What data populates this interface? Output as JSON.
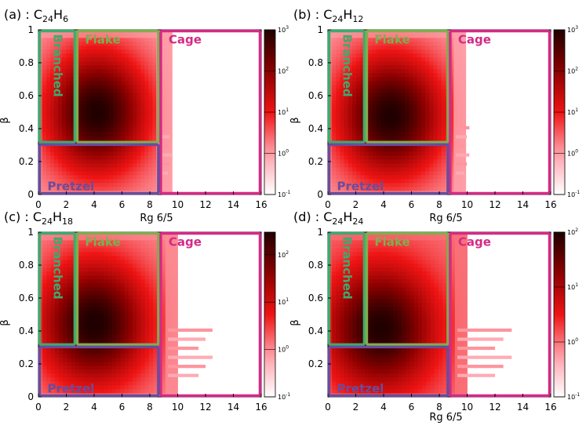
{
  "chart_data": [
    {
      "type": "heatmap",
      "title": "(a) : C24H6",
      "formula": {
        "prefix": "(a) : C",
        "n_c": "24",
        "h": "H",
        "n_h": "6"
      },
      "xlabel": "Rg 6/5",
      "ylabel": "β",
      "xlim": [
        0,
        16
      ],
      "ylim": [
        0,
        1
      ],
      "xticks": [
        "0",
        "2",
        "4",
        "6",
        "8",
        "10",
        "12",
        "14",
        "16"
      ],
      "yticks": [
        "0",
        "0.2",
        "0.4",
        "0.6",
        "0.8",
        "1"
      ],
      "colorbar": {
        "scale": "log",
        "min": 0.1,
        "max": 1000,
        "ticks": [
          {
            "base": "10",
            "exp": "-1"
          },
          {
            "base": "10",
            "exp": "0"
          },
          {
            "base": "10",
            "exp": "1"
          },
          {
            "base": "10",
            "exp": "2"
          },
          {
            "base": "10",
            "exp": "3"
          }
        ]
      },
      "density": {
        "peak_x": 4.2,
        "peak_y": 0.5,
        "x_extent": 8.6,
        "tail_x": 10.0,
        "max_log": 3
      },
      "regions": [
        {
          "label": "Branched",
          "x": [
            0,
            2.7
          ],
          "y": [
            0.31,
            1.0
          ],
          "color": "#3daa6e"
        },
        {
          "label": "Flake",
          "x": [
            2.7,
            8.7
          ],
          "y": [
            0.31,
            1.0
          ],
          "color": "#7fae4f"
        },
        {
          "label": "Cage",
          "x": [
            8.7,
            16
          ],
          "y": [
            0.0,
            1.0
          ],
          "color": "#d42a86"
        },
        {
          "label": "Pretzel",
          "x": [
            0,
            8.7
          ],
          "y": [
            0.0,
            0.31
          ],
          "color": "#6a4c9c"
        }
      ]
    },
    {
      "type": "heatmap",
      "title": "(b) : C24H12",
      "formula": {
        "prefix": "(b) : C",
        "n_c": "24",
        "h": "H",
        "n_h": "12"
      },
      "xlabel": "Rg 6/5",
      "ylabel": "β",
      "xlim": [
        0,
        16
      ],
      "ylim": [
        0,
        1
      ],
      "xticks": [
        "0",
        "2",
        "4",
        "6",
        "8",
        "10",
        "12",
        "14",
        "16"
      ],
      "yticks": [
        "0",
        "0.2",
        "0.4",
        "0.6",
        "0.8",
        "1"
      ],
      "colorbar": {
        "scale": "log",
        "min": 0.1,
        "max": 1000,
        "ticks": [
          {
            "base": "10",
            "exp": "-1"
          },
          {
            "base": "10",
            "exp": "0"
          },
          {
            "base": "10",
            "exp": "1"
          },
          {
            "base": "10",
            "exp": "2"
          },
          {
            "base": "10",
            "exp": "3"
          }
        ]
      },
      "density": {
        "peak_x": 4.5,
        "peak_y": 0.48,
        "x_extent": 8.9,
        "tail_x": 10.7,
        "max_log": 3
      },
      "regions": [
        {
          "label": "Branched",
          "x": [
            0,
            2.7
          ],
          "y": [
            0.31,
            1.0
          ],
          "color": "#3daa6e"
        },
        {
          "label": "Flake",
          "x": [
            2.7,
            8.7
          ],
          "y": [
            0.31,
            1.0
          ],
          "color": "#7fae4f"
        },
        {
          "label": "Cage",
          "x": [
            8.7,
            16
          ],
          "y": [
            0.0,
            1.0
          ],
          "color": "#d42a86"
        },
        {
          "label": "Pretzel",
          "x": [
            0,
            8.7
          ],
          "y": [
            0.0,
            0.31
          ],
          "color": "#6a4c9c"
        }
      ]
    },
    {
      "type": "heatmap",
      "title": "(c) : C24H18",
      "formula": {
        "prefix": "(c) : C",
        "n_c": "24",
        "h": "H",
        "n_h": "18"
      },
      "xlabel": "",
      "ylabel": "β",
      "xlim": [
        0,
        16
      ],
      "ylim": [
        0,
        1
      ],
      "xticks": [
        "0",
        "2",
        "4",
        "6",
        "8",
        "10",
        "12",
        "14",
        "16"
      ],
      "yticks": [
        "0",
        "0.2",
        "0.4",
        "0.6",
        "0.8",
        "1"
      ],
      "colorbar": {
        "scale": "log",
        "min": 0.1,
        "max": 300,
        "ticks": [
          {
            "base": "10",
            "exp": "-1"
          },
          {
            "base": "10",
            "exp": "0"
          },
          {
            "base": "10",
            "exp": "1"
          },
          {
            "base": "10",
            "exp": "2"
          }
        ]
      },
      "density": {
        "peak_x": 4.0,
        "peak_y": 0.45,
        "x_extent": 9.0,
        "tail_x": 14.0,
        "max_log": 2.5
      },
      "regions": [
        {
          "label": "Branched",
          "x": [
            0,
            2.7
          ],
          "y": [
            0.31,
            1.0
          ],
          "color": "#3daa6e"
        },
        {
          "label": "Flake",
          "x": [
            2.7,
            8.7
          ],
          "y": [
            0.31,
            1.0
          ],
          "color": "#7fae4f"
        },
        {
          "label": "Cage",
          "x": [
            8.7,
            16
          ],
          "y": [
            0.0,
            1.0
          ],
          "color": "#d42a86"
        },
        {
          "label": "Pretzel",
          "x": [
            0,
            8.7
          ],
          "y": [
            0.0,
            0.31
          ],
          "color": "#6a4c9c"
        }
      ]
    },
    {
      "type": "heatmap",
      "title": "(d) : C24H24",
      "formula": {
        "prefix": "(d) : C",
        "n_c": "24",
        "h": "H",
        "n_h": "24"
      },
      "xlabel": "Rg 6/5",
      "ylabel": "β",
      "xlim": [
        0,
        16
      ],
      "ylim": [
        0,
        1
      ],
      "xticks": [
        "0",
        "2",
        "4",
        "6",
        "8",
        "10",
        "12",
        "14",
        "16"
      ],
      "yticks": [
        "0.2",
        "0.4",
        "0.6",
        "0.8",
        "1"
      ],
      "colorbar": {
        "scale": "log",
        "min": 0.1,
        "max": 100,
        "ticks": [
          {
            "base": "10",
            "exp": "-1"
          },
          {
            "base": "10",
            "exp": "0"
          },
          {
            "base": "10",
            "exp": "1"
          },
          {
            "base": "10",
            "exp": "2"
          }
        ]
      },
      "density": {
        "peak_x": 3.8,
        "peak_y": 0.42,
        "x_extent": 9.0,
        "tail_x": 15.0,
        "max_log": 2
      },
      "regions": [
        {
          "label": "Branched",
          "x": [
            0,
            2.7
          ],
          "y": [
            0.31,
            1.0
          ],
          "color": "#3daa6e"
        },
        {
          "label": "Flake",
          "x": [
            2.7,
            8.7
          ],
          "y": [
            0.31,
            1.0
          ],
          "color": "#7fae4f"
        },
        {
          "label": "Cage",
          "x": [
            8.7,
            16
          ],
          "y": [
            0.0,
            1.0
          ],
          "color": "#d42a86"
        },
        {
          "label": "Pretzel",
          "x": [
            0,
            8.7
          ],
          "y": [
            0.0,
            0.31
          ],
          "color": "#6a4c9c"
        }
      ]
    }
  ]
}
